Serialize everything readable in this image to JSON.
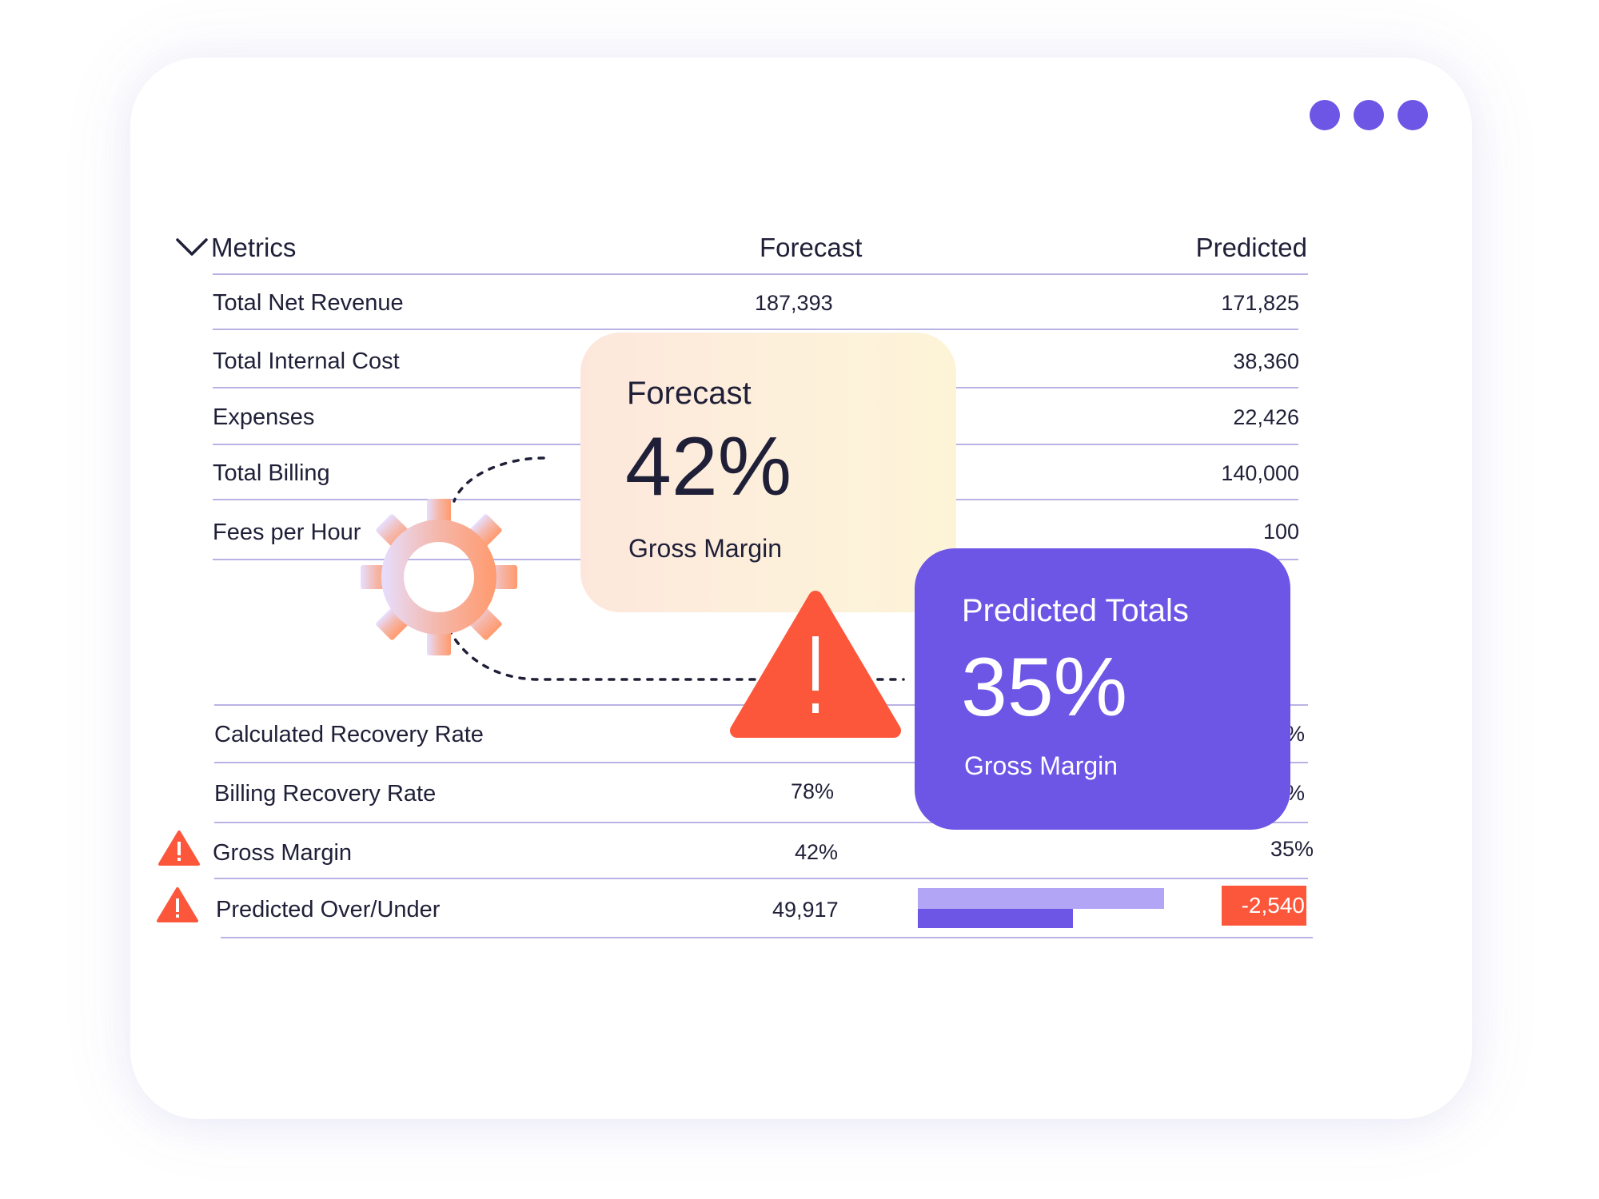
{
  "window": {
    "dots": [
      "menu-dot-1",
      "menu-dot-2",
      "menu-dot-3"
    ],
    "accent": "#6d56e6"
  },
  "table": {
    "headers": {
      "metrics": "Metrics",
      "forecast": "Forecast",
      "predicted": "Predicted"
    },
    "rows": [
      {
        "label": "Total Net Revenue",
        "forecast": "187,393",
        "predicted": "171,825"
      },
      {
        "label": "Total Internal Cost",
        "forecast": "",
        "predicted": "38,360"
      },
      {
        "label": "Expenses",
        "forecast": "",
        "predicted": "22,426"
      },
      {
        "label": "Total Billing",
        "forecast": "",
        "predicted": "140,000"
      },
      {
        "label": "Fees per Hour",
        "forecast": "",
        "predicted": "100"
      },
      {
        "label": "Calculated Recovery Rate",
        "forecast": "",
        "predicted": "%"
      },
      {
        "label": "Billing Recovery Rate",
        "forecast": "78%",
        "predicted": "%"
      },
      {
        "label": "Gross Margin",
        "forecast": "42%",
        "predicted": "35%",
        "warning": true
      },
      {
        "label": "Predicted Over/Under",
        "forecast": "49,917",
        "predicted": "-2,540",
        "warning": true
      }
    ],
    "overunder_bars": {
      "forecast_fraction": 1.0,
      "predicted_fraction": 0.63
    }
  },
  "cards": {
    "forecast": {
      "title": "Forecast",
      "value": "42%",
      "subtitle": "Gross Margin"
    },
    "predicted": {
      "title": "Predicted Totals",
      "value": "35%",
      "subtitle": "Gross Margin"
    }
  },
  "icons": {
    "gear": "gear-icon",
    "warning": "warning-icon",
    "chevron": "chevron-down-icon"
  },
  "colors": {
    "warning": "#fc573b",
    "light_purple": "#b3a5f6",
    "rule": "#b8b3e4"
  }
}
